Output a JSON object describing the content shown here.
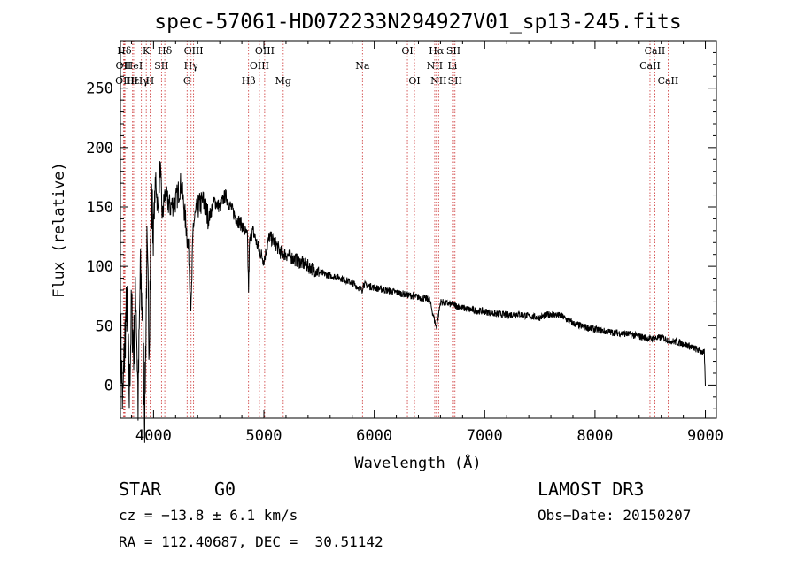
{
  "chart_data": {
    "type": "line",
    "title": "spec-57061-HD072233N294927V01_sp13-245.fits",
    "xlabel": "Wavelength (Å)",
    "ylabel": "Flux (relative)",
    "xlim": [
      3700,
      9100
    ],
    "ylim": [
      -28,
      290
    ],
    "x_ticks": [
      4000,
      5000,
      6000,
      7000,
      8000,
      9000
    ],
    "y_ticks": [
      0,
      50,
      100,
      150,
      200,
      250
    ],
    "line_color": "#000000",
    "marker_color": "#cc3333",
    "series": [
      {
        "name": "spectrum",
        "x": [
          3700,
          3720,
          3740,
          3760,
          3780,
          3800,
          3820,
          3840,
          3860,
          3880,
          3900,
          3920,
          3940,
          3960,
          3980,
          4000,
          4020,
          4040,
          4060,
          4080,
          4100,
          4150,
          4200,
          4250,
          4300,
          4320,
          4340,
          4360,
          4400,
          4450,
          4500,
          4550,
          4600,
          4650,
          4700,
          4750,
          4800,
          4850,
          4861,
          4870,
          4900,
          4950,
          5000,
          5050,
          5100,
          5150,
          5200,
          5300,
          5400,
          5500,
          5600,
          5700,
          5800,
          5890,
          5900,
          6000,
          6100,
          6200,
          6300,
          6400,
          6500,
          6563,
          6600,
          6700,
          6800,
          6900,
          7000,
          7100,
          7200,
          7300,
          7400,
          7500,
          7600,
          7700,
          7800,
          7900,
          8000,
          8100,
          8200,
          8300,
          8400,
          8500,
          8600,
          8700,
          8800,
          8900,
          8990,
          9000
        ],
        "y": [
          55,
          -20,
          40,
          70,
          -10,
          65,
          30,
          80,
          -15,
          95,
          60,
          -25,
          110,
          40,
          150,
          135,
          175,
          145,
          185,
          140,
          160,
          150,
          155,
          170,
          130,
          110,
          62,
          135,
          150,
          155,
          140,
          155,
          150,
          160,
          150,
          140,
          135,
          125,
          80,
          120,
          130,
          115,
          105,
          125,
          120,
          112,
          110,
          105,
          100,
          95,
          92,
          90,
          86,
          80,
          85,
          82,
          80,
          78,
          76,
          74,
          72,
          48,
          70,
          68,
          65,
          63,
          62,
          60,
          59,
          60,
          58,
          57,
          60,
          58,
          52,
          49,
          47,
          45,
          44,
          43,
          41,
          39,
          40,
          37,
          35,
          31,
          27,
          -1
        ]
      }
    ],
    "line_markers": [
      {
        "label": "Hδ",
        "x": 3735,
        "row": 1
      },
      {
        "label": "OII",
        "x": 3727,
        "row": 2
      },
      {
        "label": "OIII",
        "x": 3741,
        "row": 3
      },
      {
        "label": "Hε",
        "x": 3810,
        "row": 3
      },
      {
        "label": "HeI",
        "x": 3820,
        "row": 2
      },
      {
        "label": "K",
        "x": 3934,
        "row": 1
      },
      {
        "label": "H",
        "x": 3968,
        "row": 3
      },
      {
        "label": "SII",
        "x": 4072,
        "row": 2
      },
      {
        "label": "Hδ",
        "x": 4102,
        "row": 1
      },
      {
        "label": "Hγ",
        "x": 3890,
        "row": 3
      },
      {
        "label": "OIII",
        "x": 4363,
        "row": 1
      },
      {
        "label": "Hγ",
        "x": 4340,
        "row": 2
      },
      {
        "label": "G",
        "x": 4304,
        "row": 3
      },
      {
        "label": "Hβ",
        "x": 4861,
        "row": 3
      },
      {
        "label": "OIII",
        "x": 5007,
        "row": 1
      },
      {
        "label": "OIII",
        "x": 4959,
        "row": 2
      },
      {
        "label": "Mg",
        "x": 5175,
        "row": 3
      },
      {
        "label": "Na",
        "x": 5893,
        "row": 2
      },
      {
        "label": "OI",
        "x": 6300,
        "row": 1
      },
      {
        "label": "OI",
        "x": 6364,
        "row": 3
      },
      {
        "label": "Hα",
        "x": 6563,
        "row": 1
      },
      {
        "label": "NII",
        "x": 6548,
        "row": 2
      },
      {
        "label": "NII",
        "x": 6583,
        "row": 3
      },
      {
        "label": "SII",
        "x": 6717,
        "row": 1
      },
      {
        "label": "Li",
        "x": 6708,
        "row": 2
      },
      {
        "label": "SII",
        "x": 6731,
        "row": 3
      },
      {
        "label": "CaII",
        "x": 8542,
        "row": 1
      },
      {
        "label": "CaII",
        "x": 8498,
        "row": 2
      },
      {
        "label": "CaII",
        "x": 8662,
        "row": 3
      }
    ]
  },
  "info": {
    "class": "STAR",
    "subclass": "G0",
    "survey": "LAMOST DR3",
    "cz": "cz = −13.8 ± 6.1 km/s",
    "obs_date": "Obs−Date: 20150207",
    "coords": "RA = 112.40687, DEC =  30.51142"
  }
}
